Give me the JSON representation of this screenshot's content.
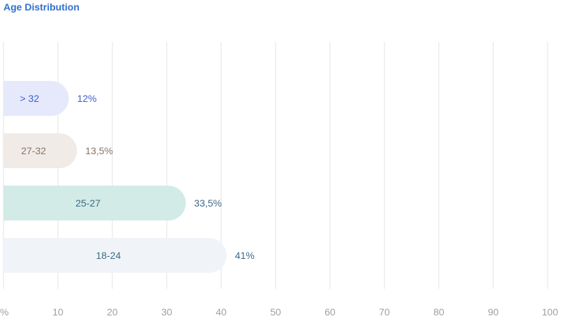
{
  "chart_data": {
    "type": "bar",
    "orientation": "horizontal",
    "title": "Age Distribution",
    "xlabel": "",
    "ylabel": "",
    "xlim": [
      0,
      100
    ],
    "grid": true,
    "x_ticks": [
      "%",
      "10",
      "20",
      "30",
      "40",
      "50",
      "60",
      "70",
      "80",
      "90",
      "100"
    ],
    "categories": [
      "> 32",
      "27-32",
      "25-27",
      "18-24"
    ],
    "values": [
      12,
      13.5,
      33.5,
      41
    ],
    "value_labels": [
      "12%",
      "13,5%",
      "33,5%",
      "41%"
    ],
    "bar_colors": [
      "#e6e9fb",
      "#f0ebe6",
      "#d2ebe6",
      "#f0f4f8"
    ],
    "label_colors": [
      "#3f5fcf",
      "#8a7468",
      "#3f6a86",
      "#3f6a86"
    ]
  }
}
